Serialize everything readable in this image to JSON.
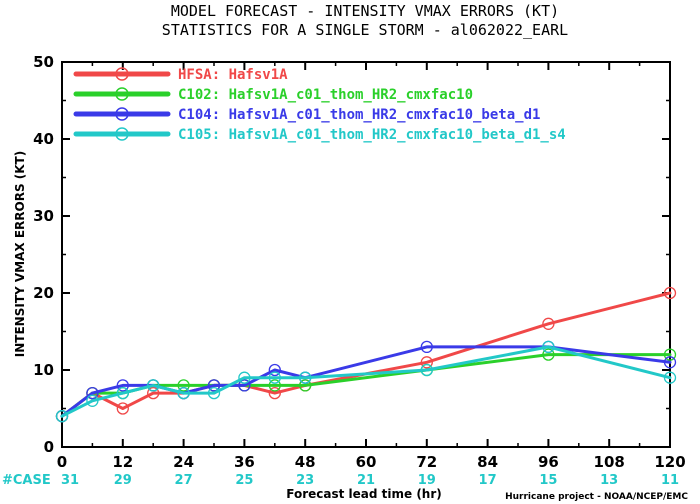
{
  "chart_data": {
    "type": "line",
    "title_line1": "MODEL FORECAST - INTENSITY VMAX ERRORS (KT)",
    "title_line2": "STATISTICS FOR A SINGLE STORM - al062022_EARL",
    "xlabel": "Forecast lead time (hr)",
    "ylabel": "INTENSITY VMAX ERRORS (KT)",
    "xlim": [
      0,
      120
    ],
    "ylim": [
      0,
      50
    ],
    "xticks": [
      0,
      12,
      24,
      36,
      48,
      60,
      72,
      84,
      96,
      108,
      120
    ],
    "yticks": [
      0,
      10,
      20,
      30,
      40,
      50
    ],
    "legend_position": "top-left",
    "series": [
      {
        "name": "HFSA: Hafsv1A",
        "color": "#f04848",
        "x": [
          0,
          6,
          12,
          18,
          24,
          30,
          36,
          42,
          48,
          72,
          96,
          120
        ],
        "y": [
          4,
          7,
          5,
          7,
          7,
          8,
          8,
          7,
          8,
          11,
          16,
          20
        ]
      },
      {
        "name": "C102: Hafsv1A_c01_thom_HR2_cmxfac10",
        "color": "#2ad02a",
        "x": [
          0,
          6,
          12,
          18,
          24,
          30,
          36,
          42,
          48,
          72,
          96,
          120
        ],
        "y": [
          4,
          7,
          7,
          8,
          8,
          8,
          8,
          8,
          8,
          10,
          12,
          12
        ]
      },
      {
        "name": "C104: Hafsv1A_c01_thom_HR2_cmxfac10_beta_d1",
        "color": "#3a3ae8",
        "x": [
          0,
          6,
          12,
          18,
          24,
          30,
          36,
          42,
          48,
          72,
          96,
          120
        ],
        "y": [
          4,
          7,
          8,
          8,
          7,
          8,
          8,
          10,
          9,
          13,
          13,
          11
        ]
      },
      {
        "name": "C105: Hafsv1A_c01_thom_HR2_cmxfac10_beta_d1_s4",
        "color": "#22c8c8",
        "x": [
          0,
          6,
          12,
          18,
          24,
          30,
          36,
          42,
          48,
          72,
          96,
          120
        ],
        "y": [
          4,
          6,
          7,
          8,
          7,
          7,
          9,
          9,
          9,
          10,
          13,
          9
        ]
      }
    ],
    "case_label": "#CASE",
    "case_counts": [
      "31",
      "29",
      "27",
      "25",
      "23",
      "21",
      "19",
      "17",
      "15",
      "13",
      "11"
    ],
    "case_color": "#22c8c8",
    "credit": "Hurricane project - NOAA/NCEP/EMC"
  }
}
